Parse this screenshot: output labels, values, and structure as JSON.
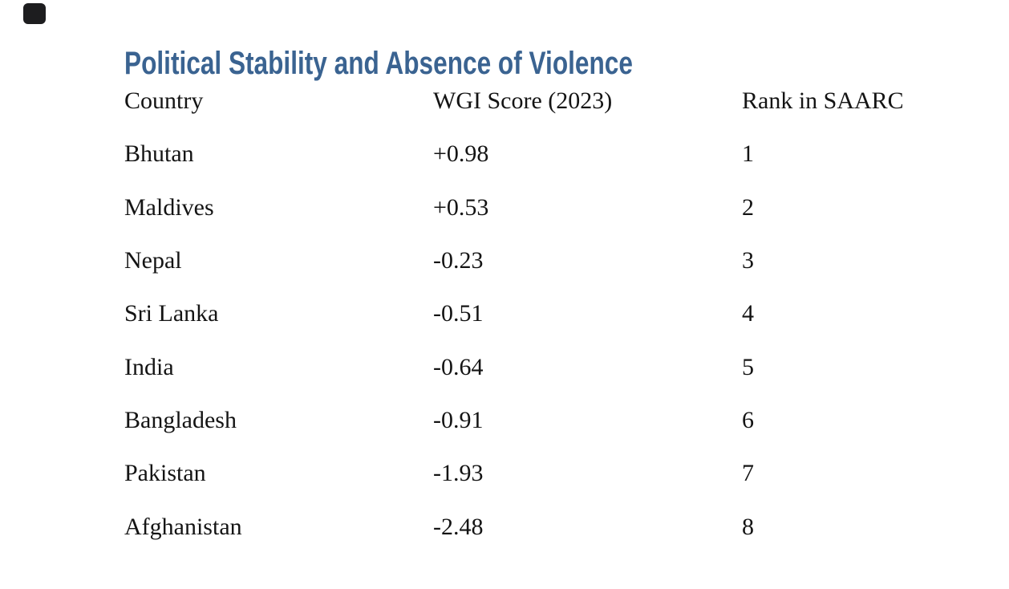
{
  "page": {
    "background": "#ffffff",
    "text_color": "#141414"
  },
  "title": {
    "text": "Political Stability and Absence of Violence",
    "color": "#3a6391"
  },
  "table": {
    "headers": [
      "Country",
      "WGI Score (2023)",
      "Rank in SAARC"
    ],
    "rows": [
      {
        "country": "Bhutan",
        "score": "+0.98",
        "rank": "1"
      },
      {
        "country": "Maldives",
        "score": "+0.53",
        "rank": "2"
      },
      {
        "country": "Nepal",
        "score": "-0.23",
        "rank": "3"
      },
      {
        "country": "Sri Lanka",
        "score": "-0.51",
        "rank": "4"
      },
      {
        "country": "India",
        "score": "-0.64",
        "rank": "5"
      },
      {
        "country": "Bangladesh",
        "score": "-0.91",
        "rank": "6"
      },
      {
        "country": "Pakistan",
        "score": "-1.93",
        "rank": "7"
      },
      {
        "country": "Afghanistan",
        "score": "-2.48",
        "rank": "8"
      }
    ]
  }
}
